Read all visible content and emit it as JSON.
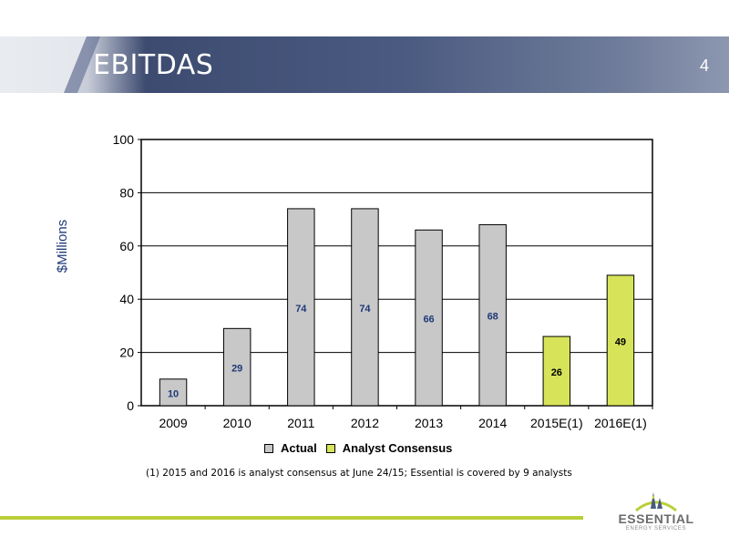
{
  "slide": {
    "title": "EBITDAS",
    "page_number": "4",
    "footnote": "(1)  2015 and 2016 is analyst consensus at June 24/15; Essential is covered by 9 analysts"
  },
  "brand": {
    "name": "ESSENTIAL",
    "subtitle": "ENERGY SERVICES",
    "header_color": "#3a4a6e",
    "accent_color": "#b9cf3a"
  },
  "chart_data": {
    "type": "bar",
    "categories": [
      "2009",
      "2010",
      "2011",
      "2012",
      "2013",
      "2014",
      "2015E(1)",
      "2016E(1)"
    ],
    "values": [
      10,
      29,
      74,
      74,
      66,
      68,
      26,
      49
    ],
    "series_assignment": [
      "Actual",
      "Actual",
      "Actual",
      "Actual",
      "Actual",
      "Actual",
      "Analyst Consensus",
      "Analyst Consensus"
    ],
    "series": [
      {
        "name": "Actual",
        "color": "#c8c8c8"
      },
      {
        "name": "Analyst Consensus",
        "color": "#d7e45a"
      }
    ],
    "title": "",
    "xlabel": "",
    "ylabel": "$Millions",
    "ylim": [
      0,
      100
    ],
    "yticks": [
      "0",
      "20",
      "40",
      "60",
      "80",
      "100"
    ],
    "grid": true,
    "legend_position": "bottom"
  }
}
